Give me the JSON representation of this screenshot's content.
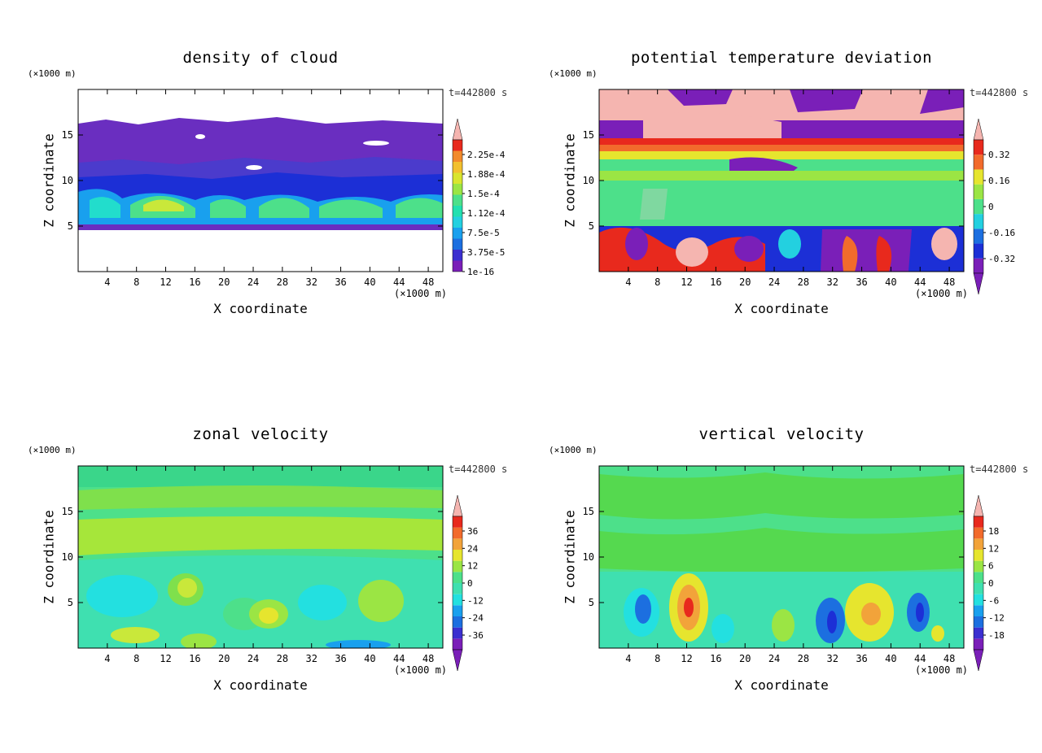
{
  "chart_data": [
    {
      "type": "heatmap",
      "title": "density of cloud",
      "xlabel": "X coordinate",
      "ylabel": "Z coordinate",
      "xunit": "(×1000 m)",
      "yunit": "(×1000 m)",
      "time_label": "t=442800 s",
      "xlim": [
        0,
        50
      ],
      "ylim": [
        0,
        20
      ],
      "x_ticks": [
        "4",
        "8",
        "12",
        "16",
        "20",
        "24",
        "28",
        "32",
        "36",
        "40",
        "44",
        "48"
      ],
      "y_ticks": [
        "5",
        "10",
        "15"
      ],
      "colorbar_labels": [
        "2.25e-4",
        "1.88e-4",
        "1.5e-4",
        "1.12e-4",
        "7.5e-5",
        "3.75e-5",
        "1e-16"
      ],
      "colorbar_min_arrow": false,
      "colorbar_max_arrow": true
    },
    {
      "type": "heatmap",
      "title": "potential temperature deviation",
      "xlabel": "X coordinate",
      "ylabel": "Z coordinate",
      "xunit": "(×1000 m)",
      "yunit": "(×1000 m)",
      "time_label": "t=442800 s",
      "xlim": [
        0,
        50
      ],
      "ylim": [
        0,
        20
      ],
      "x_ticks": [
        "4",
        "8",
        "12",
        "16",
        "20",
        "24",
        "28",
        "32",
        "36",
        "40",
        "44",
        "48"
      ],
      "y_ticks": [
        "5",
        "10",
        "15"
      ],
      "colorbar_labels": [
        "0.32",
        "0.16",
        "0",
        "-0.16",
        "-0.32"
      ],
      "colorbar_min_arrow": true,
      "colorbar_max_arrow": true
    },
    {
      "type": "heatmap",
      "title": "zonal velocity",
      "xlabel": "X coordinate",
      "ylabel": "Z coordinate",
      "xunit": "(×1000 m)",
      "yunit": "(×1000 m)",
      "time_label": "t=442800 s",
      "xlim": [
        0,
        50
      ],
      "ylim": [
        0,
        20
      ],
      "x_ticks": [
        "4",
        "8",
        "12",
        "16",
        "20",
        "24",
        "28",
        "32",
        "36",
        "40",
        "44",
        "48"
      ],
      "y_ticks": [
        "5",
        "10",
        "15"
      ],
      "colorbar_labels": [
        "36",
        "24",
        "12",
        "0",
        "-12",
        "-24",
        "-36"
      ],
      "colorbar_min_arrow": true,
      "colorbar_max_arrow": true
    },
    {
      "type": "heatmap",
      "title": "vertical velocity",
      "xlabel": "X coordinate",
      "ylabel": "Z coordinate",
      "xunit": "(×1000 m)",
      "yunit": "(×1000 m)",
      "time_label": "t=442800 s",
      "xlim": [
        0,
        50
      ],
      "ylim": [
        0,
        20
      ],
      "x_ticks": [
        "4",
        "8",
        "12",
        "16",
        "20",
        "24",
        "28",
        "32",
        "36",
        "40",
        "44",
        "48"
      ],
      "y_ticks": [
        "5",
        "10",
        "15"
      ],
      "colorbar_labels": [
        "18",
        "12",
        "6",
        "0",
        "-6",
        "-12",
        "-18"
      ],
      "colorbar_min_arrow": true,
      "colorbar_max_arrow": true
    }
  ]
}
